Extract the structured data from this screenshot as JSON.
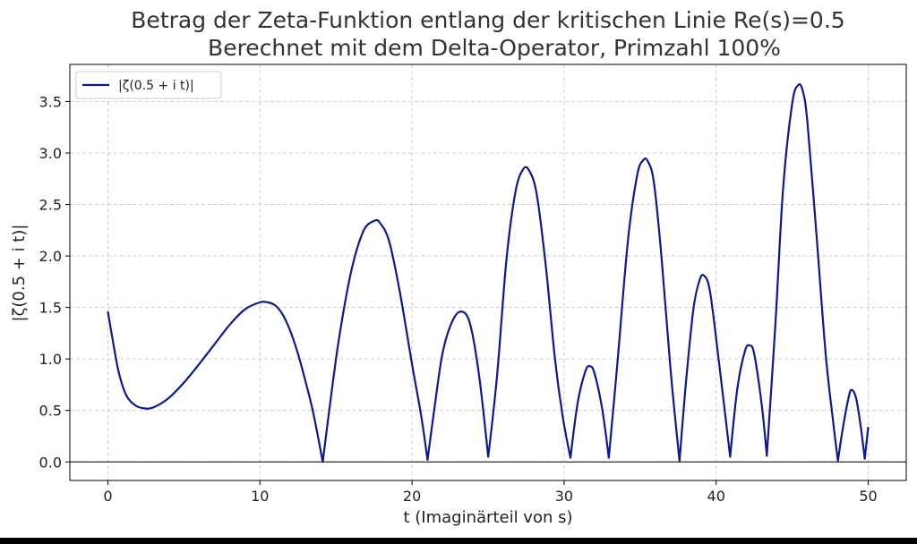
{
  "chart_data": {
    "type": "line",
    "title": "Betrag der Zeta-Funktion entlang der kritischen Linie Re(s)=0.5",
    "subtitle": "Berechnet mit dem Delta-Operator, Primzahl 100%",
    "xlabel": "t (Imaginärteil von s)",
    "ylabel": "|ζ(0.5 + i t)|",
    "xlim": [
      -2.5,
      52.5
    ],
    "ylim": [
      -0.18,
      3.86
    ],
    "xticks": [
      0,
      10,
      20,
      30,
      40,
      50
    ],
    "xtick_labels": [
      "0",
      "10",
      "20",
      "30",
      "40",
      "50"
    ],
    "yticks": [
      0.0,
      0.5,
      1.0,
      1.5,
      2.0,
      2.5,
      3.0,
      3.5
    ],
    "ytick_labels": [
      "0.0",
      "0.5",
      "1.0",
      "1.5",
      "2.0",
      "2.5",
      "3.0",
      "3.5"
    ],
    "grid": true,
    "legend_position": "top-left",
    "series": [
      {
        "name": "|ζ(0.5 + i t)|",
        "color": "#0c1a8a",
        "x": [
          0,
          0.3,
          0.7,
          1.2,
          1.8,
          2.4,
          3.0,
          4.0,
          5.0,
          6.0,
          7.0,
          8.0,
          9.0,
          10.0,
          10.5,
          11.0,
          11.5,
          12.0,
          12.5,
          13.0,
          13.5,
          14.13,
          14.6,
          15.2,
          16.0,
          16.8,
          17.5,
          17.9,
          18.5,
          19.2,
          20.0,
          20.6,
          21.02,
          21.5,
          22.0,
          22.6,
          23.2,
          23.8,
          24.4,
          25.01,
          25.6,
          26.2,
          26.8,
          27.3,
          27.7,
          28.2,
          28.8,
          29.4,
          29.9,
          30.42,
          30.9,
          31.4,
          31.7,
          32.0,
          32.5,
          32.94,
          33.5,
          34.2,
          34.8,
          35.2,
          35.5,
          35.9,
          36.4,
          37.0,
          37.59,
          38.0,
          38.5,
          38.9,
          39.2,
          39.6,
          40.2,
          40.92,
          41.4,
          41.9,
          42.2,
          42.5,
          43.0,
          43.33,
          43.9,
          44.4,
          45.0,
          45.4,
          45.7,
          46.0,
          46.6,
          47.2,
          47.7,
          48.01,
          48.3,
          48.7,
          48.9,
          49.2,
          49.5,
          49.77,
          50.0
        ],
        "y": [
          1.46,
          1.2,
          0.88,
          0.65,
          0.55,
          0.52,
          0.53,
          0.62,
          0.77,
          0.95,
          1.14,
          1.33,
          1.48,
          1.55,
          1.55,
          1.52,
          1.43,
          1.27,
          1.05,
          0.78,
          0.48,
          0.0,
          0.55,
          1.2,
          1.85,
          2.24,
          2.34,
          2.32,
          2.14,
          1.65,
          0.95,
          0.45,
          0.02,
          0.55,
          1.05,
          1.35,
          1.46,
          1.35,
          0.85,
          0.05,
          0.85,
          1.95,
          2.62,
          2.84,
          2.83,
          2.6,
          1.9,
          1.0,
          0.45,
          0.04,
          0.58,
          0.88,
          0.93,
          0.86,
          0.52,
          0.04,
          0.95,
          2.15,
          2.78,
          2.93,
          2.92,
          2.72,
          2.0,
          0.9,
          0.01,
          0.75,
          1.48,
          1.76,
          1.81,
          1.65,
          0.95,
          0.05,
          0.72,
          1.08,
          1.13,
          1.05,
          0.55,
          0.06,
          1.35,
          2.65,
          3.48,
          3.66,
          3.6,
          3.3,
          2.2,
          1.05,
          0.38,
          0.01,
          0.3,
          0.62,
          0.7,
          0.62,
          0.35,
          0.03,
          0.34
        ]
      }
    ]
  }
}
